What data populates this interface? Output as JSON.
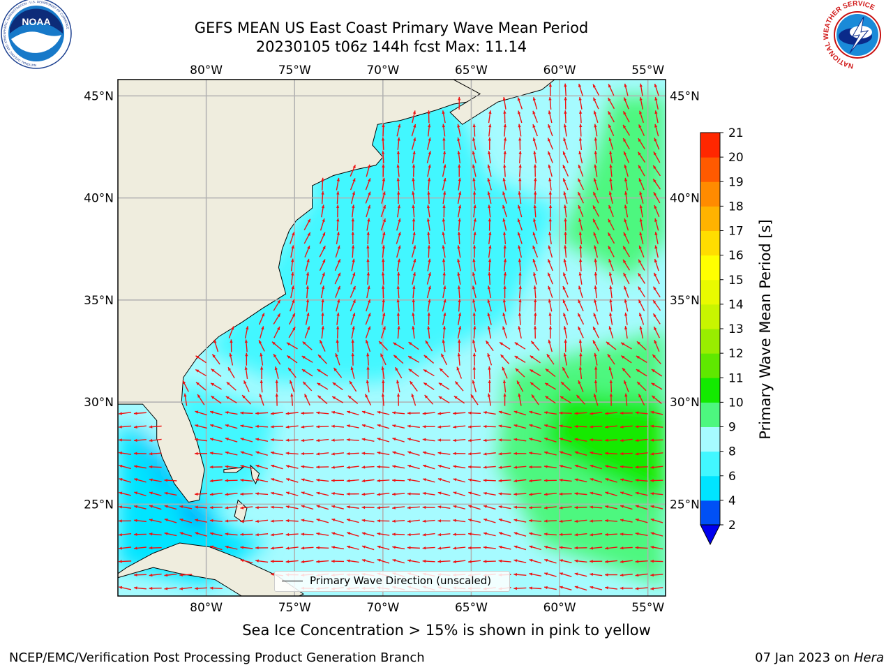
{
  "title": {
    "line1": "GEFS MEAN US East Coast Primary Wave Mean Period",
    "line2": "20230105 t06z 144h fcst   Max: 11.14"
  },
  "map": {
    "projection": "rectangular lat/lon",
    "lon_range": [
      -85,
      -54
    ],
    "lat_range": [
      20.5,
      45.8
    ],
    "lon_ticks": [
      -80,
      -75,
      -70,
      -65,
      -60,
      -55
    ],
    "lon_tick_labels": [
      "80°W",
      "75°W",
      "70°W",
      "65°W",
      "60°W",
      "55°W"
    ],
    "lat_ticks": [
      25,
      30,
      35,
      40,
      45
    ],
    "lat_tick_labels": [
      "25°N",
      "30°N",
      "35°N",
      "40°N",
      "45°N"
    ],
    "grid": true,
    "land_color": "#efedde",
    "arrow_color": "#ee1111"
  },
  "legend": {
    "label": "Primary Wave Direction (unscaled)",
    "placement": "bottom-center"
  },
  "colorbar": {
    "label": "Primary Wave Mean Period [s]",
    "ticks": [
      "2",
      "4",
      "6",
      "8",
      "9",
      "10",
      "11",
      "12",
      "13",
      "14",
      "15",
      "16",
      "17",
      "18",
      "19",
      "20",
      "21"
    ],
    "colors": [
      "#0050f5",
      "#00e4ff",
      "#42f7ff",
      "#a6fbff",
      "#4df77f",
      "#13ea00",
      "#5fe800",
      "#99ed00",
      "#c8f500",
      "#e9fa00",
      "#ffff00",
      "#ffdd00",
      "#ffb300",
      "#ff8b00",
      "#ff5a00",
      "#ff2700"
    ],
    "under_color": "#0000ee"
  },
  "note": "Sea Ice Concentration > 15% is shown in pink to yellow",
  "footer": {
    "left": "NCEP/EMC/Verification Post Processing Product Generation Branch",
    "date": "07 Jan 2023 on",
    "host": "Hera"
  },
  "logos": {
    "noaa": "NOAA",
    "noaa_ring": "NATIONAL OCEANIC AND ATMOSPHERIC ADMINISTRATION · U.S. DEPARTMENT OF COMMERCE",
    "nws_ring": "NATIONAL WEATHER SERVICE"
  }
}
